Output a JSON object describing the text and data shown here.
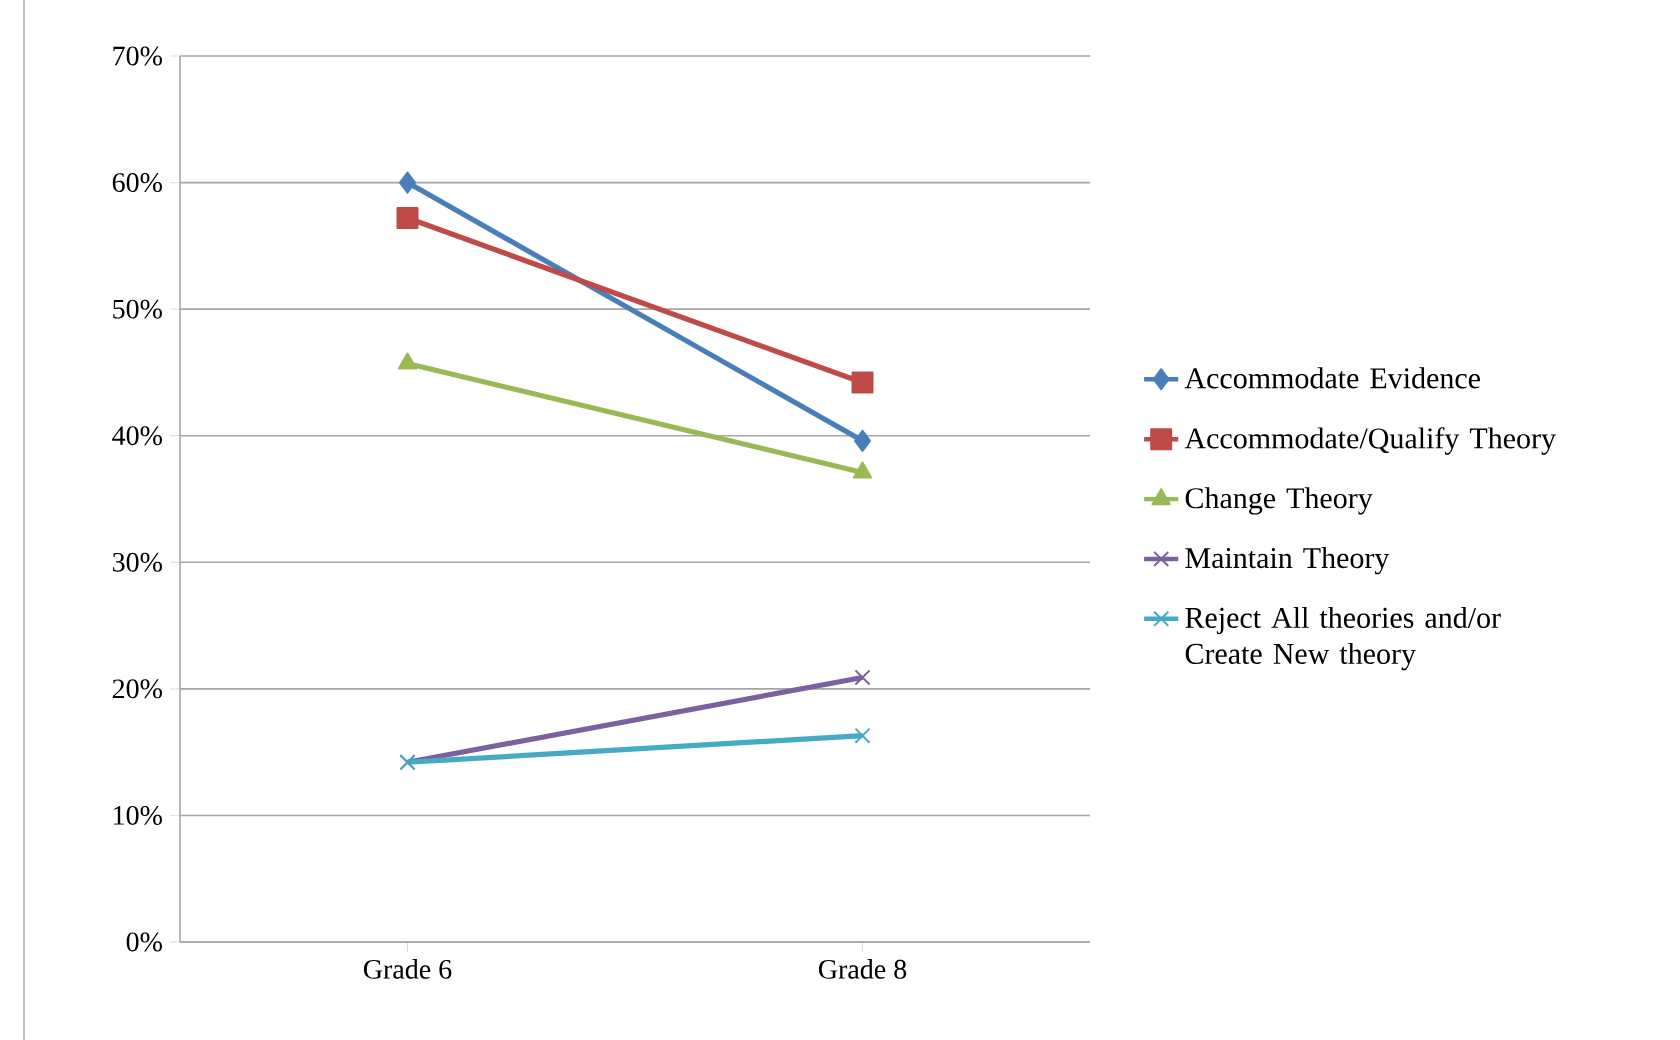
{
  "chart_data": {
    "type": "line",
    "categories": [
      "Grade 6",
      "Grade 8"
    ],
    "series": [
      {
        "name": "Accommodate Evidence",
        "color": "#4a7ebb",
        "marker": "diamond",
        "values": [
          60.0,
          39.6
        ]
      },
      {
        "name": "Accommodate/Qualify Theory",
        "color": "#be4b48",
        "marker": "square",
        "values": [
          57.2,
          44.2
        ]
      },
      {
        "name": "Change Theory",
        "color": "#98b954",
        "marker": "triangle",
        "values": [
          45.7,
          37.1
        ]
      },
      {
        "name": "Maintain Theory",
        "color": "#7d60a0",
        "marker": "cross",
        "values": [
          14.2,
          20.9
        ]
      },
      {
        "name": "Reject All theories and/or Create New theory",
        "color": "#46aac5",
        "marker": "cross",
        "values": [
          14.2,
          16.3
        ]
      }
    ],
    "ylim": [
      0,
      70
    ],
    "yticks": [
      {
        "value": 0,
        "label": "0%"
      },
      {
        "value": 10,
        "label": "10%"
      },
      {
        "value": 20,
        "label": "20%"
      },
      {
        "value": 30,
        "label": "30%"
      },
      {
        "value": 40,
        "label": "40%"
      },
      {
        "value": 50,
        "label": "50%"
      },
      {
        "value": 60,
        "label": "60%"
      },
      {
        "value": 70,
        "label": "70%"
      }
    ],
    "grid": "y",
    "legend": "right",
    "line_style": "solid"
  }
}
